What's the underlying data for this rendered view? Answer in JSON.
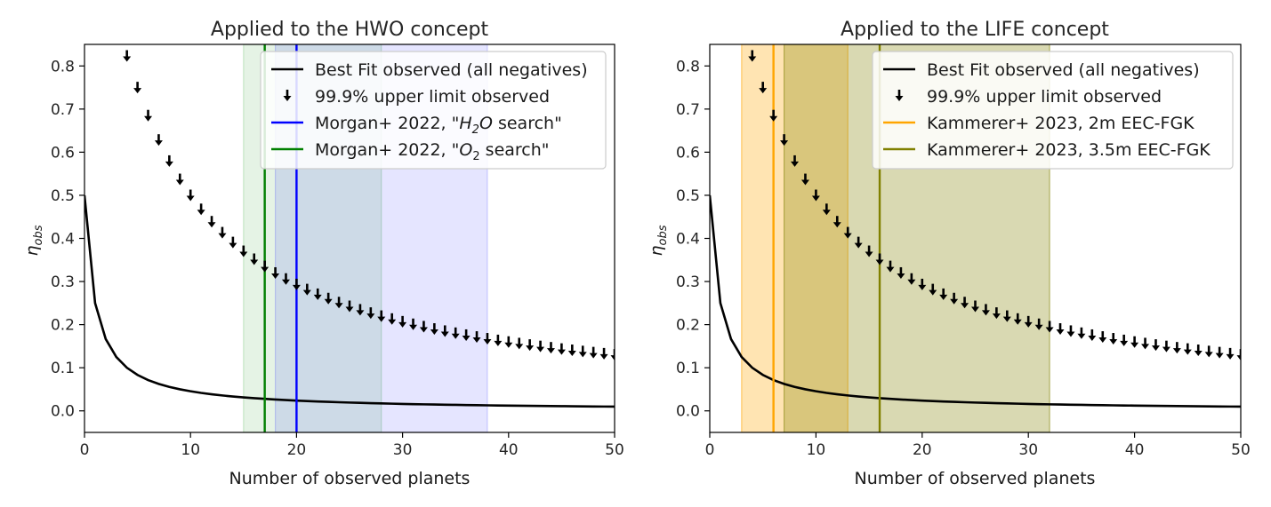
{
  "chart_data": [
    {
      "type": "line",
      "title": "Applied to the HWO concept",
      "xlabel": "Number of observed planets",
      "ylabel": "η",
      "ylabel_sub": "obs",
      "xlim": [
        0,
        50
      ],
      "ylim": [
        -0.05,
        0.85
      ],
      "xticks": [
        0,
        10,
        20,
        30,
        40,
        50
      ],
      "yticks": [
        0.0,
        0.1,
        0.2,
        0.3,
        0.4,
        0.5,
        0.6,
        0.7,
        0.8
      ],
      "grid": false,
      "legend_position": "top-right",
      "best_fit": {
        "label": "Best Fit observed (all negatives)",
        "color": "#000000"
      },
      "upper_limits": {
        "label": "99.9% upper limit observed",
        "color": "#000000",
        "n_start": 3,
        "n_end": 50
      },
      "spans": [
        {
          "x0": 15,
          "x1": 28,
          "color": "#2ca02c",
          "alpha": 0.12
        },
        {
          "x0": 18,
          "x1": 38,
          "color": "#0000ff",
          "alpha": 0.1
        }
      ],
      "vlines": [
        {
          "x": 17,
          "color": "#008000",
          "label_prefix": "Morgan+ 2022, \"",
          "label_math": "O",
          "label_sub": "2",
          "label_suffix": " search\"",
          "label_italic_all": false
        },
        {
          "x": 20,
          "color": "#0000ff",
          "label_prefix": "Morgan+ 2022, \"",
          "label_math": "H",
          "label_sub": "2",
          "label_math2": "O",
          "label_suffix": " search\"",
          "label_italic_all": true
        }
      ],
      "legend_order": [
        "best_fit",
        "upper_limits",
        "vline:1",
        "vline:0"
      ]
    },
    {
      "type": "line",
      "title": "Applied to the LIFE concept",
      "xlabel": "Number of observed planets",
      "ylabel": "η",
      "ylabel_sub": "obs",
      "xlim": [
        0,
        50
      ],
      "ylim": [
        -0.05,
        0.85
      ],
      "xticks": [
        0,
        10,
        20,
        30,
        40,
        50
      ],
      "yticks": [
        0.0,
        0.1,
        0.2,
        0.3,
        0.4,
        0.5,
        0.6,
        0.7,
        0.8
      ],
      "grid": false,
      "legend_position": "top-right",
      "best_fit": {
        "label": "Best Fit observed (all negatives)",
        "color": "#000000"
      },
      "upper_limits": {
        "label": "99.9% upper limit observed",
        "color": "#000000",
        "n_start": 3,
        "n_end": 50
      },
      "spans": [
        {
          "x0": 3,
          "x1": 13,
          "color": "#ffa500",
          "alpha": 0.3
        },
        {
          "x0": 7,
          "x1": 32,
          "color": "#808000",
          "alpha": 0.3
        }
      ],
      "vlines": [
        {
          "x": 6,
          "color": "#ffa500",
          "label": "Kammerer+ 2023, 2m EEC-FGK"
        },
        {
          "x": 16,
          "color": "#808000",
          "label": "Kammerer+ 2023, 3.5m EEC-FGK"
        }
      ],
      "legend_order": [
        "best_fit",
        "upper_limits",
        "vline:0",
        "vline:1"
      ]
    }
  ]
}
